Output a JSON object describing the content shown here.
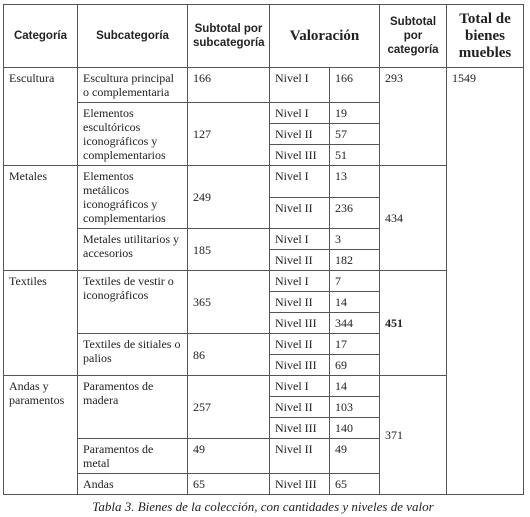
{
  "table": {
    "headers": [
      "Categoría",
      "Subcategoría",
      "Subtotal por subcategoría",
      "Valoración",
      "Subtotal por categoría",
      "Total de bienes muebles"
    ],
    "total": 1549,
    "categories": [
      {
        "name": "Escultura",
        "subtotal": 293,
        "subcategories": [
          {
            "name": "Escultura principal o complementaria",
            "subtotal": 166,
            "levels": [
              {
                "level": "Nivel I",
                "count": 166
              }
            ]
          },
          {
            "name": "Elementos escultóricos iconográficos y complementarios",
            "subtotal": 127,
            "levels": [
              {
                "level": "Nivel I",
                "count": 19
              },
              {
                "level": "Nivel II",
                "count": 57
              },
              {
                "level": "Nivel III",
                "count": 51
              }
            ]
          }
        ]
      },
      {
        "name": "Metales",
        "subtotal": 434,
        "subcategories": [
          {
            "name": "Elementos metálicos iconográficos y complementarios",
            "subtotal": 249,
            "levels": [
              {
                "level": "Nivel I",
                "count": 13
              },
              {
                "level": "Nivel II",
                "count": 236
              }
            ]
          },
          {
            "name": "Metales utilitarios y accesorios",
            "subtotal": 185,
            "levels": [
              {
                "level": "Nivel I",
                "count": 3
              },
              {
                "level": "Nivel II",
                "count": 182
              }
            ]
          }
        ]
      },
      {
        "name": "Textiles",
        "subtotal": 451,
        "subcategories": [
          {
            "name": "Textiles de vestir o iconográficos",
            "subtotal": 365,
            "levels": [
              {
                "level": "Nivel I",
                "count": 7
              },
              {
                "level": "Nivel II",
                "count": 14
              },
              {
                "level": "Nivel III",
                "count": 344
              }
            ]
          },
          {
            "name": "Textiles de sitiales o palios",
            "subtotal": 86,
            "levels": [
              {
                "level": "Nivel II",
                "count": 17
              },
              {
                "level": "Nivel III",
                "count": 69
              }
            ]
          }
        ]
      },
      {
        "name": "Andas y paramentos",
        "subtotal": 371,
        "subcategories": [
          {
            "name": "Paramentos de madera",
            "subtotal": 257,
            "levels": [
              {
                "level": "Nivel I",
                "count": 14
              },
              {
                "level": "Nivel II",
                "count": 103
              },
              {
                "level": "Nivel III",
                "count": 140
              }
            ]
          },
          {
            "name": "Paramentos de metal",
            "subtotal": 49,
            "levels": [
              {
                "level": "Nivel II",
                "count": 49
              }
            ]
          },
          {
            "name": "Andas",
            "subtotal": 65,
            "levels": [
              {
                "level": "Nivel III",
                "count": 65
              }
            ]
          }
        ]
      }
    ],
    "caption": "Tabla 3. Bienes de la colección, con cantidades y niveles de valor"
  }
}
